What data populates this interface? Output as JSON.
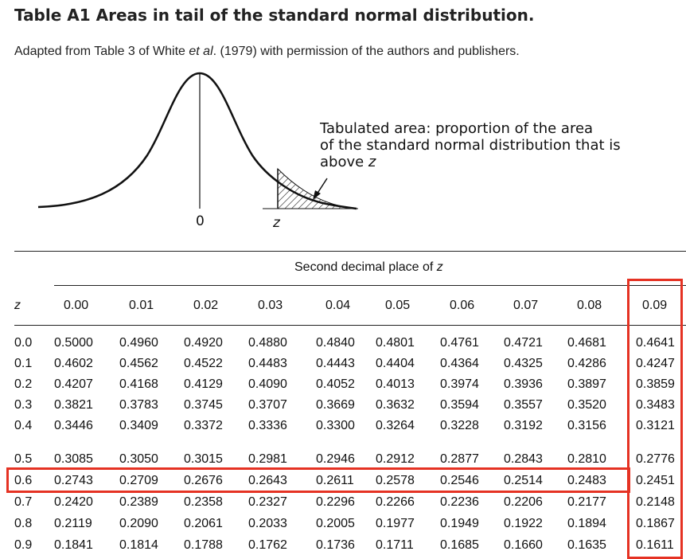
{
  "title": "Table A1  Areas in tail of the standard normal distribution.",
  "subtitle": {
    "before": "Adapted from Table 3 of White ",
    "italic": "et al",
    "after": ". (1979) with permission of the authors and publishers."
  },
  "figure": {
    "label_zero": "0",
    "label_z": "z",
    "caption_line1": "Tabulated area: proportion of the area",
    "caption_line2": "of the standard normal distribution that is",
    "caption_line3_prefix": "above ",
    "caption_line3_italic": "z"
  },
  "table": {
    "column_title_prefix": "Second decimal place of ",
    "column_title_italic": "z",
    "z_header": "z",
    "columns": [
      "0.00",
      "0.01",
      "0.02",
      "0.03",
      "0.04",
      "0.05",
      "0.06",
      "0.07",
      "0.08",
      "0.09"
    ],
    "rows": [
      {
        "z": "0.0",
        "values": [
          "0.5000",
          "0.4960",
          "0.4920",
          "0.4880",
          "0.4840",
          "0.4801",
          "0.4761",
          "0.4721",
          "0.4681",
          "0.4641"
        ]
      },
      {
        "z": "0.1",
        "values": [
          "0.4602",
          "0.4562",
          "0.4522",
          "0.4483",
          "0.4443",
          "0.4404",
          "0.4364",
          "0.4325",
          "0.4286",
          "0.4247"
        ]
      },
      {
        "z": "0.2",
        "values": [
          "0.4207",
          "0.4168",
          "0.4129",
          "0.4090",
          "0.4052",
          "0.4013",
          "0.3974",
          "0.3936",
          "0.3897",
          "0.3859"
        ]
      },
      {
        "z": "0.3",
        "values": [
          "0.3821",
          "0.3783",
          "0.3745",
          "0.3707",
          "0.3669",
          "0.3632",
          "0.3594",
          "0.3557",
          "0.3520",
          "0.3483"
        ]
      },
      {
        "z": "0.4",
        "values": [
          "0.3446",
          "0.3409",
          "0.3372",
          "0.3336",
          "0.3300",
          "0.3264",
          "0.3228",
          "0.3192",
          "0.3156",
          "0.3121"
        ]
      },
      {
        "z": "0.5",
        "values": [
          "0.3085",
          "0.3050",
          "0.3015",
          "0.2981",
          "0.2946",
          "0.2912",
          "0.2877",
          "0.2843",
          "0.2810",
          "0.2776"
        ]
      },
      {
        "z": "0.6",
        "values": [
          "0.2743",
          "0.2709",
          "0.2676",
          "0.2643",
          "0.2611",
          "0.2578",
          "0.2546",
          "0.2514",
          "0.2483",
          "0.2451"
        ]
      },
      {
        "z": "0.7",
        "values": [
          "0.2420",
          "0.2389",
          "0.2358",
          "0.2327",
          "0.2296",
          "0.2266",
          "0.2236",
          "0.2206",
          "0.2177",
          "0.2148"
        ]
      },
      {
        "z": "0.8",
        "values": [
          "0.2119",
          "0.2090",
          "0.2061",
          "0.2033",
          "0.2005",
          "0.1977",
          "0.1949",
          "0.1922",
          "0.1894",
          "0.1867"
        ]
      },
      {
        "z": "0.9",
        "values": [
          "0.1841",
          "0.1814",
          "0.1788",
          "0.1762",
          "0.1736",
          "0.1711",
          "0.1685",
          "0.1660",
          "0.1635",
          "0.1611"
        ]
      }
    ],
    "highlight": {
      "row": "0.6",
      "column": "0.09",
      "color": "#e53223"
    }
  }
}
